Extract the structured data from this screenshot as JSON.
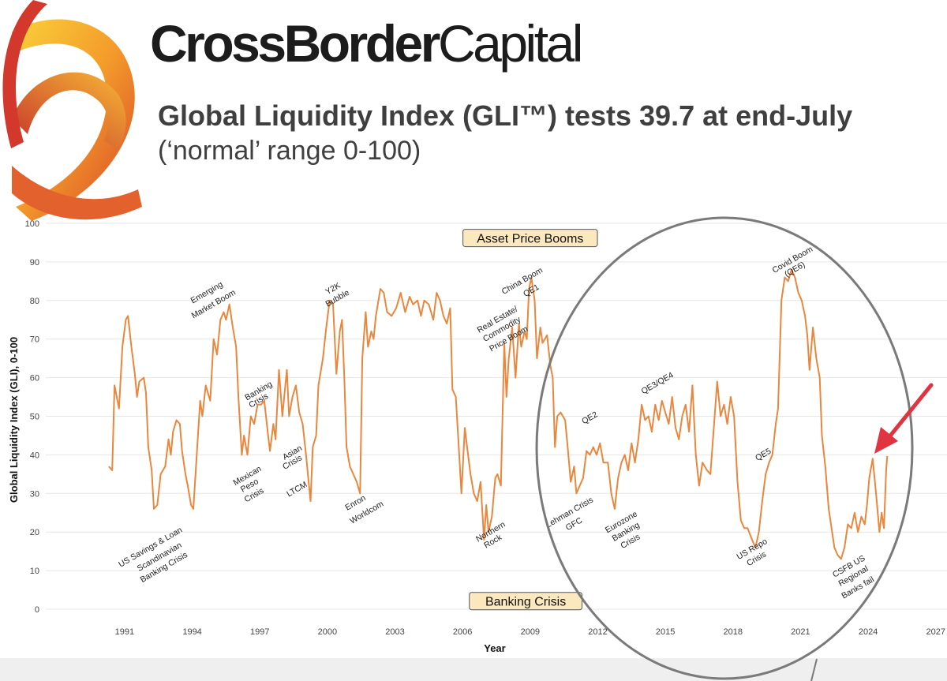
{
  "brand": {
    "part1": "CrossBorder",
    "part2": "Capital"
  },
  "headline": {
    "title": "Global Liquidity Index (GLI™) tests 39.7 at end-July",
    "subtitle": "(‘normal’ range 0-100)"
  },
  "colors": {
    "line": "#e8873e",
    "label_box_fill": "#fbe8be",
    "circle": "#7a7a7a",
    "arrow": "#e03540"
  },
  "chart_data": {
    "type": "line",
    "title": "Global Liquidity Index (GLI™) tests 39.7 at end-July",
    "xlabel": "Year",
    "ylabel": "Global Liquidity Index (GLI), 0-100",
    "xlim": [
      1987.5,
      2027.5
    ],
    "ylim": [
      0,
      100
    ],
    "x_ticks": [
      1991,
      1994,
      1997,
      2000,
      2003,
      2006,
      2009,
      2012,
      2015,
      2018,
      2021,
      2024,
      2027
    ],
    "y_ticks": [
      0,
      10,
      20,
      30,
      40,
      50,
      60,
      70,
      80,
      90,
      100
    ],
    "grid": "horizontal",
    "series": [
      {
        "name": "GLI",
        "points": [
          [
            1990.3,
            37
          ],
          [
            1990.45,
            36
          ],
          [
            1990.55,
            58
          ],
          [
            1990.75,
            52
          ],
          [
            1990.9,
            68
          ],
          [
            1991.05,
            75
          ],
          [
            1991.15,
            76
          ],
          [
            1991.3,
            68
          ],
          [
            1991.45,
            61
          ],
          [
            1991.55,
            55
          ],
          [
            1991.65,
            59
          ],
          [
            1991.85,
            60
          ],
          [
            1991.95,
            56
          ],
          [
            1992.05,
            42
          ],
          [
            1992.2,
            36
          ],
          [
            1992.3,
            26
          ],
          [
            1992.45,
            27
          ],
          [
            1992.6,
            35
          ],
          [
            1992.8,
            37
          ],
          [
            1992.95,
            44
          ],
          [
            1993.05,
            40
          ],
          [
            1993.15,
            46
          ],
          [
            1993.3,
            49
          ],
          [
            1993.45,
            48
          ],
          [
            1993.55,
            41
          ],
          [
            1993.7,
            35
          ],
          [
            1993.8,
            32
          ],
          [
            1993.95,
            27
          ],
          [
            1994.05,
            26
          ],
          [
            1994.2,
            40
          ],
          [
            1994.35,
            54
          ],
          [
            1994.45,
            50
          ],
          [
            1994.6,
            58
          ],
          [
            1994.8,
            54
          ],
          [
            1994.95,
            70
          ],
          [
            1995.1,
            66
          ],
          [
            1995.25,
            75
          ],
          [
            1995.4,
            77
          ],
          [
            1995.5,
            75
          ],
          [
            1995.65,
            79
          ],
          [
            1995.8,
            73
          ],
          [
            1995.95,
            68
          ],
          [
            1996.05,
            55
          ],
          [
            1996.2,
            40
          ],
          [
            1996.3,
            45
          ],
          [
            1996.45,
            40
          ],
          [
            1996.6,
            50
          ],
          [
            1996.75,
            48
          ],
          [
            1996.9,
            53
          ],
          [
            1997.05,
            53
          ],
          [
            1997.2,
            54
          ],
          [
            1997.35,
            46
          ],
          [
            1997.45,
            41
          ],
          [
            1997.6,
            48
          ],
          [
            1997.7,
            44
          ],
          [
            1997.85,
            62
          ],
          [
            1998.0,
            50
          ],
          [
            1998.1,
            56
          ],
          [
            1998.2,
            62
          ],
          [
            1998.3,
            50
          ],
          [
            1998.45,
            55
          ],
          [
            1998.6,
            58
          ],
          [
            1998.75,
            51
          ],
          [
            1998.9,
            48
          ],
          [
            1999.05,
            40
          ],
          [
            1999.15,
            34
          ],
          [
            1999.25,
            28
          ],
          [
            1999.35,
            42
          ],
          [
            1999.5,
            45
          ],
          [
            1999.6,
            58
          ],
          [
            1999.8,
            65
          ],
          [
            1999.95,
            73
          ],
          [
            2000.1,
            80
          ],
          [
            2000.25,
            79
          ],
          [
            2000.4,
            61
          ],
          [
            2000.55,
            72
          ],
          [
            2000.65,
            75
          ],
          [
            2000.75,
            60
          ],
          [
            2000.85,
            42
          ],
          [
            2001.0,
            37
          ],
          [
            2001.15,
            35
          ],
          [
            2001.3,
            33
          ],
          [
            2001.45,
            30
          ],
          [
            2001.55,
            65
          ],
          [
            2001.7,
            77
          ],
          [
            2001.8,
            68
          ],
          [
            2001.95,
            72
          ],
          [
            2002.05,
            70
          ],
          [
            2002.15,
            76
          ],
          [
            2002.35,
            83
          ],
          [
            2002.5,
            82
          ],
          [
            2002.65,
            77
          ],
          [
            2002.85,
            76
          ],
          [
            2003.05,
            78
          ],
          [
            2003.25,
            82
          ],
          [
            2003.45,
            77
          ],
          [
            2003.65,
            81
          ],
          [
            2003.8,
            79
          ],
          [
            2004.0,
            80
          ],
          [
            2004.15,
            76
          ],
          [
            2004.3,
            80
          ],
          [
            2004.5,
            79
          ],
          [
            2004.7,
            75
          ],
          [
            2004.85,
            82
          ],
          [
            2005.0,
            80
          ],
          [
            2005.15,
            76
          ],
          [
            2005.3,
            74
          ],
          [
            2005.45,
            78
          ],
          [
            2005.55,
            57
          ],
          [
            2005.7,
            55
          ],
          [
            2005.85,
            40
          ],
          [
            2005.95,
            30
          ],
          [
            2006.1,
            47
          ],
          [
            2006.2,
            42
          ],
          [
            2006.35,
            35
          ],
          [
            2006.5,
            30
          ],
          [
            2006.65,
            28
          ],
          [
            2006.8,
            33
          ],
          [
            2006.95,
            18
          ],
          [
            2007.05,
            27
          ],
          [
            2007.15,
            20
          ],
          [
            2007.3,
            24
          ],
          [
            2007.45,
            34
          ],
          [
            2007.55,
            35
          ],
          [
            2007.7,
            32
          ],
          [
            2007.85,
            69
          ],
          [
            2007.95,
            55
          ],
          [
            2008.05,
            65
          ],
          [
            2008.2,
            73
          ],
          [
            2008.35,
            60
          ],
          [
            2008.5,
            74
          ],
          [
            2008.6,
            68
          ],
          [
            2008.75,
            72
          ],
          [
            2008.85,
            70
          ],
          [
            2008.95,
            83
          ],
          [
            2009.05,
            86
          ],
          [
            2009.2,
            80
          ],
          [
            2009.3,
            65
          ],
          [
            2009.45,
            73
          ],
          [
            2009.55,
            69
          ],
          [
            2009.75,
            71
          ],
          [
            2009.9,
            63
          ],
          [
            2010.0,
            60
          ],
          [
            2010.1,
            42
          ],
          [
            2010.2,
            50
          ],
          [
            2010.35,
            51
          ],
          [
            2010.55,
            49
          ],
          [
            2010.65,
            43
          ],
          [
            2010.8,
            33
          ],
          [
            2010.95,
            37
          ],
          [
            2011.05,
            30
          ],
          [
            2011.2,
            32
          ],
          [
            2011.35,
            34
          ],
          [
            2011.5,
            41
          ],
          [
            2011.65,
            40
          ],
          [
            2011.8,
            42
          ],
          [
            2011.95,
            40
          ],
          [
            2012.1,
            43
          ],
          [
            2012.25,
            38
          ],
          [
            2012.45,
            38
          ],
          [
            2012.6,
            30
          ],
          [
            2012.75,
            26
          ],
          [
            2012.9,
            34
          ],
          [
            2013.05,
            38
          ],
          [
            2013.2,
            40
          ],
          [
            2013.35,
            36
          ],
          [
            2013.5,
            43
          ],
          [
            2013.65,
            38
          ],
          [
            2013.8,
            44
          ],
          [
            2013.95,
            53
          ],
          [
            2014.1,
            49
          ],
          [
            2014.25,
            50
          ],
          [
            2014.4,
            46
          ],
          [
            2014.55,
            53
          ],
          [
            2014.7,
            49
          ],
          [
            2014.85,
            54
          ],
          [
            2015.0,
            51
          ],
          [
            2015.15,
            48
          ],
          [
            2015.3,
            55
          ],
          [
            2015.45,
            47
          ],
          [
            2015.6,
            44
          ],
          [
            2015.75,
            50
          ],
          [
            2015.9,
            53
          ],
          [
            2016.05,
            46
          ],
          [
            2016.2,
            58
          ],
          [
            2016.35,
            40
          ],
          [
            2016.5,
            32
          ],
          [
            2016.65,
            38
          ],
          [
            2016.85,
            36
          ],
          [
            2017.0,
            35
          ],
          [
            2017.15,
            47
          ],
          [
            2017.3,
            59
          ],
          [
            2017.45,
            50
          ],
          [
            2017.6,
            53
          ],
          [
            2017.75,
            48
          ],
          [
            2017.9,
            55
          ],
          [
            2018.05,
            50
          ],
          [
            2018.2,
            33
          ],
          [
            2018.35,
            23
          ],
          [
            2018.5,
            21
          ],
          [
            2018.65,
            21
          ],
          [
            2018.85,
            18
          ],
          [
            2019.0,
            16
          ],
          [
            2019.15,
            20
          ],
          [
            2019.3,
            28
          ],
          [
            2019.45,
            35
          ],
          [
            2019.6,
            38
          ],
          [
            2019.75,
            40
          ],
          [
            2019.9,
            48
          ],
          [
            2020.0,
            52
          ],
          [
            2020.15,
            80
          ],
          [
            2020.3,
            86
          ],
          [
            2020.45,
            85
          ],
          [
            2020.6,
            88
          ],
          [
            2020.75,
            86
          ],
          [
            2020.9,
            82
          ],
          [
            2021.05,
            80
          ],
          [
            2021.2,
            76
          ],
          [
            2021.3,
            71
          ],
          [
            2021.4,
            62
          ],
          [
            2021.55,
            73
          ],
          [
            2021.7,
            65
          ],
          [
            2021.85,
            60
          ],
          [
            2021.95,
            45
          ],
          [
            2022.1,
            37
          ],
          [
            2022.25,
            26
          ],
          [
            2022.35,
            22
          ],
          [
            2022.5,
            16
          ],
          [
            2022.65,
            14
          ],
          [
            2022.8,
            13
          ],
          [
            2022.95,
            16
          ],
          [
            2023.1,
            22
          ],
          [
            2023.25,
            21
          ],
          [
            2023.4,
            25
          ],
          [
            2023.55,
            20
          ],
          [
            2023.7,
            24
          ],
          [
            2023.85,
            22
          ],
          [
            2023.95,
            27
          ],
          [
            2024.05,
            34
          ],
          [
            2024.2,
            39
          ],
          [
            2024.35,
            30
          ],
          [
            2024.5,
            20
          ],
          [
            2024.6,
            25
          ],
          [
            2024.7,
            21
          ],
          [
            2024.8,
            36
          ],
          [
            2024.85,
            39.7
          ]
        ]
      }
    ],
    "annotations": [
      {
        "text": "US Savings & Loan",
        "x": 1992.2,
        "y": 15.5
      },
      {
        "text": "Scandinavian",
        "x": 1992.6,
        "y": 13
      },
      {
        "text": "Banking Crisis",
        "x": 1992.8,
        "y": 10.3
      },
      {
        "text": "Emerging",
        "x": 1994.7,
        "y": 81.5
      },
      {
        "text": "Market Boom",
        "x": 1995.0,
        "y": 78.5
      },
      {
        "text": "Mexican",
        "x": 1996.5,
        "y": 34
      },
      {
        "text": "Peso",
        "x": 1996.6,
        "y": 31.5
      },
      {
        "text": "Crisis",
        "x": 1996.8,
        "y": 29
      },
      {
        "text": "Banking",
        "x": 1997.0,
        "y": 56
      },
      {
        "text": "Crisis",
        "x": 1997.0,
        "y": 53.5
      },
      {
        "text": "Asian",
        "x": 1998.5,
        "y": 40
      },
      {
        "text": "Crisis",
        "x": 1998.5,
        "y": 37.5
      },
      {
        "text": "LTCM",
        "x": 1998.7,
        "y": 30.5
      },
      {
        "text": "Y2K",
        "x": 2000.3,
        "y": 82.5
      },
      {
        "text": "Bubble",
        "x": 2000.5,
        "y": 80
      },
      {
        "text": "Enron",
        "x": 2001.3,
        "y": 27
      },
      {
        "text": "Worldcom",
        "x": 2001.8,
        "y": 24.5
      },
      {
        "text": "Real Estate/",
        "x": 2007.6,
        "y": 74.5
      },
      {
        "text": "Commodity",
        "x": 2007.8,
        "y": 72
      },
      {
        "text": "Price Boom",
        "x": 2008.1,
        "y": 69.5
      },
      {
        "text": "China Boom",
        "x": 2008.7,
        "y": 84.5
      },
      {
        "text": "QE1",
        "x": 2009.1,
        "y": 82
      },
      {
        "text": "Northern",
        "x": 2007.3,
        "y": 19.5
      },
      {
        "text": "Rock",
        "x": 2007.4,
        "y": 17
      },
      {
        "text": "Lehman Crisis",
        "x": 2010.8,
        "y": 24.5
      },
      {
        "text": "GFC",
        "x": 2011.0,
        "y": 21.5
      },
      {
        "text": "QE2",
        "x": 2011.7,
        "y": 49
      },
      {
        "text": "Eurozone",
        "x": 2013.1,
        "y": 22
      },
      {
        "text": "Banking",
        "x": 2013.3,
        "y": 19.5
      },
      {
        "text": "Crisis",
        "x": 2013.5,
        "y": 17
      },
      {
        "text": "QE3/QE4",
        "x": 2014.7,
        "y": 58
      },
      {
        "text": "QE5",
        "x": 2019.4,
        "y": 39.5
      },
      {
        "text": "US Repo",
        "x": 2018.9,
        "y": 15
      },
      {
        "text": "Crisis",
        "x": 2019.1,
        "y": 12.5
      },
      {
        "text": "Covid Boom",
        "x": 2020.7,
        "y": 90
      },
      {
        "text": "(QE6)",
        "x": 2020.8,
        "y": 87.5
      },
      {
        "text": "CSFB US",
        "x": 2023.2,
        "y": 10.5
      },
      {
        "text": "Regional",
        "x": 2023.4,
        "y": 8
      },
      {
        "text": "Banks fail",
        "x": 2023.6,
        "y": 5
      }
    ],
    "boxed_labels": [
      {
        "text": "Asset Price Booms",
        "x": 2009.0,
        "y": 96.2
      },
      {
        "text": "Banking Crisis",
        "x": 2008.8,
        "y": 2.1
      }
    ]
  }
}
